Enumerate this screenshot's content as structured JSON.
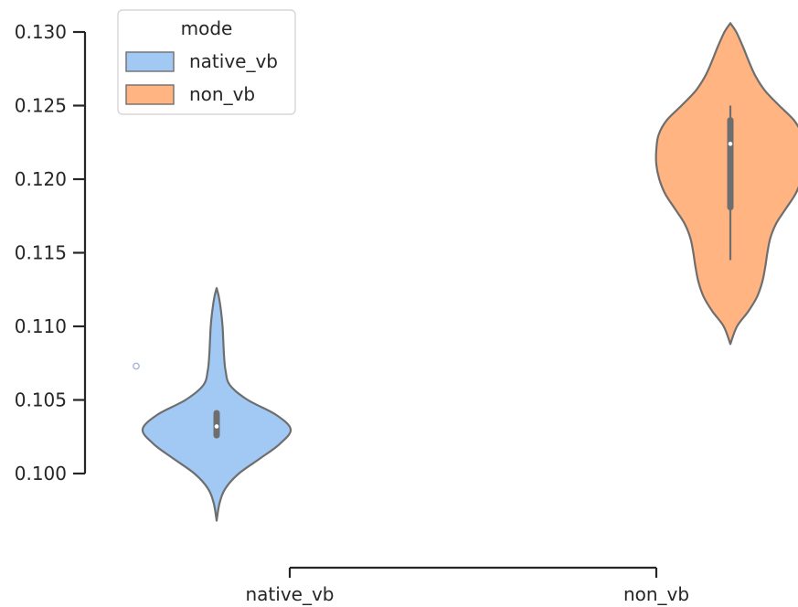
{
  "chart_data": {
    "type": "violin",
    "title": "",
    "xlabel": "",
    "ylabel": "",
    "categories": [
      "native_vb",
      "non_vb"
    ],
    "ylim": [
      0.0955,
      0.1315
    ],
    "yticks": [
      0.1,
      0.105,
      0.11,
      0.115,
      0.12,
      0.125,
      0.13
    ],
    "ytick_labels": [
      "0.100",
      "0.105",
      "0.110",
      "0.115",
      "0.120",
      "0.125",
      "0.130"
    ],
    "grid": false,
    "legend": {
      "title": "mode",
      "placement": "top-left",
      "entries": [
        {
          "label": "native_vb",
          "color": "#a1c9f4"
        },
        {
          "label": "non_vb",
          "color": "#ffb482"
        }
      ]
    },
    "series": [
      {
        "category": "native_vb",
        "color": "#a1c9f4",
        "range": [
          0.0968,
          0.1126
        ],
        "quartiles": [
          0.1026,
          0.1041
        ],
        "whiskers": [
          0.1026,
          0.1041
        ],
        "median": 0.1032,
        "density_profile": [
          [
            0.0968,
            0.0
          ],
          [
            0.098,
            0.04
          ],
          [
            0.099,
            0.12
          ],
          [
            0.1,
            0.3
          ],
          [
            0.101,
            0.58
          ],
          [
            0.102,
            0.85
          ],
          [
            0.103,
            1.0
          ],
          [
            0.104,
            0.8
          ],
          [
            0.105,
            0.42
          ],
          [
            0.106,
            0.18
          ],
          [
            0.107,
            0.12
          ],
          [
            0.108,
            0.1
          ],
          [
            0.109,
            0.09
          ],
          [
            0.11,
            0.08
          ],
          [
            0.111,
            0.06
          ],
          [
            0.112,
            0.03
          ],
          [
            0.1126,
            0.0
          ]
        ],
        "outliers": [
          0.1073
        ]
      },
      {
        "category": "non_vb",
        "color": "#ffb482",
        "range": [
          0.1088,
          0.1306
        ],
        "quartiles": [
          0.1181,
          0.124
        ],
        "whiskers": [
          0.1145,
          0.125
        ],
        "median": 0.1224,
        "density_profile": [
          [
            0.1088,
            0.0
          ],
          [
            0.11,
            0.09
          ],
          [
            0.111,
            0.24
          ],
          [
            0.112,
            0.36
          ],
          [
            0.113,
            0.43
          ],
          [
            0.114,
            0.47
          ],
          [
            0.115,
            0.5
          ],
          [
            0.116,
            0.54
          ],
          [
            0.117,
            0.62
          ],
          [
            0.118,
            0.75
          ],
          [
            0.119,
            0.88
          ],
          [
            0.12,
            0.96
          ],
          [
            0.121,
            1.0
          ],
          [
            0.122,
            1.0
          ],
          [
            0.123,
            0.97
          ],
          [
            0.124,
            0.86
          ],
          [
            0.125,
            0.66
          ],
          [
            0.126,
            0.47
          ],
          [
            0.127,
            0.34
          ],
          [
            0.128,
            0.25
          ],
          [
            0.129,
            0.17
          ],
          [
            0.13,
            0.08
          ],
          [
            0.1306,
            0.0
          ]
        ],
        "outliers": []
      }
    ]
  }
}
